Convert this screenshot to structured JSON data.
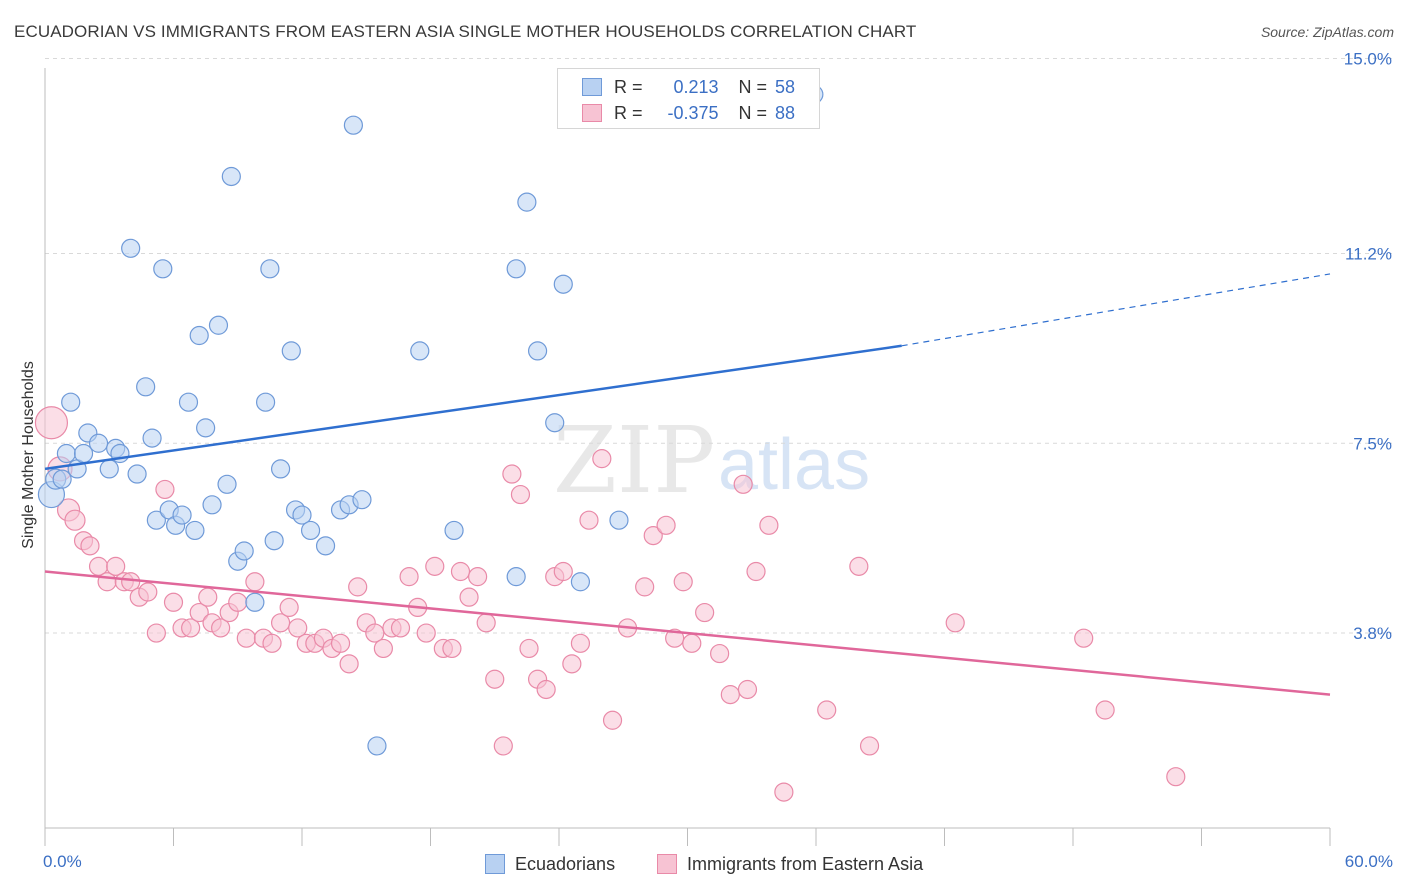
{
  "title": "ECUADORIAN VS IMMIGRANTS FROM EASTERN ASIA SINGLE MOTHER HOUSEHOLDS CORRELATION CHART",
  "source": "Source: ZipAtlas.com",
  "watermark": {
    "zip": "ZIP",
    "atlas": "atlas"
  },
  "legend_stats": [
    {
      "r_label": "R =",
      "r_value": "0.213",
      "n_label": "N =",
      "n_value": "58"
    },
    {
      "r_label": "R =",
      "r_value": "-0.375",
      "n_label": "N =",
      "n_value": "88"
    }
  ],
  "bottom_legend": [
    "Ecuadorians",
    "Immigrants from Eastern Asia"
  ],
  "colors": {
    "blue_fill": "#b8d1f2",
    "blue_stroke": "#6f9ad8",
    "blue_line": "#2f6fcf",
    "pink_fill": "#f7c3d3",
    "pink_stroke": "#e98aa8",
    "pink_line": "#e0679a",
    "tick_text": "#3b6fc4",
    "grid": "#d9d9d9"
  },
  "chart_data": {
    "type": "scatter",
    "title": "ECUADORIAN VS IMMIGRANTS FROM EASTERN ASIA SINGLE MOTHER HOUSEHOLDS CORRELATION CHART",
    "xlabel": "",
    "ylabel": "Single Mother Households",
    "xlim": [
      0,
      60
    ],
    "ylim": [
      0,
      15.6
    ],
    "x_tick_labels": [
      "0.0%",
      "60.0%"
    ],
    "y_ticks": [
      3.8,
      7.5,
      11.2,
      15.0
    ],
    "y_tick_labels": [
      "3.8%",
      "7.5%",
      "11.2%",
      "15.0%"
    ],
    "grid": "horizontal dashed",
    "legend_position": "top-center",
    "series": [
      {
        "name": "Ecuadorians",
        "r": 0.213,
        "n": 58,
        "trend": {
          "x0": 0.0,
          "y0": 7.0,
          "x1": 40.0,
          "y1": 9.4,
          "dashed_to_x": 60.0,
          "dashed_to_y": 10.8
        },
        "points": [
          [
            0.3,
            6.5,
            13
          ],
          [
            0.5,
            6.8,
            10
          ],
          [
            0.8,
            6.8,
            9
          ],
          [
            1.0,
            7.3,
            9
          ],
          [
            1.2,
            8.3,
            9
          ],
          [
            1.5,
            7.0,
            9
          ],
          [
            1.8,
            7.3,
            9
          ],
          [
            2.0,
            7.7,
            9
          ],
          [
            2.5,
            7.5,
            9
          ],
          [
            3.0,
            7.0,
            9
          ],
          [
            3.3,
            7.4,
            9
          ],
          [
            3.5,
            7.3,
            9
          ],
          [
            4.0,
            11.3,
            9
          ],
          [
            4.3,
            6.9,
            9
          ],
          [
            4.7,
            8.6,
            9
          ],
          [
            5.0,
            7.6,
            9
          ],
          [
            5.2,
            6.0,
            9
          ],
          [
            5.5,
            10.9,
            9
          ],
          [
            5.8,
            6.2,
            9
          ],
          [
            6.1,
            5.9,
            9
          ],
          [
            6.4,
            6.1,
            9
          ],
          [
            6.7,
            8.3,
            9
          ],
          [
            7.0,
            5.8,
            9
          ],
          [
            7.2,
            9.6,
            9
          ],
          [
            7.5,
            7.8,
            9
          ],
          [
            7.8,
            6.3,
            9
          ],
          [
            8.1,
            9.8,
            9
          ],
          [
            8.5,
            6.7,
            9
          ],
          [
            8.7,
            12.7,
            9
          ],
          [
            9.0,
            5.2,
            9
          ],
          [
            9.3,
            5.4,
            9
          ],
          [
            9.8,
            4.4,
            9
          ],
          [
            10.3,
            8.3,
            9
          ],
          [
            10.5,
            10.9,
            9
          ],
          [
            10.7,
            5.6,
            9
          ],
          [
            11.0,
            7.0,
            9
          ],
          [
            11.5,
            9.3,
            9
          ],
          [
            11.7,
            6.2,
            9
          ],
          [
            12.0,
            6.1,
            9
          ],
          [
            12.4,
            5.8,
            9
          ],
          [
            13.1,
            5.5,
            9
          ],
          [
            13.8,
            6.2,
            9
          ],
          [
            14.2,
            6.3,
            9
          ],
          [
            14.4,
            13.7,
            9
          ],
          [
            14.8,
            6.4,
            9
          ],
          [
            15.5,
            1.6,
            9
          ],
          [
            17.5,
            9.3,
            9
          ],
          [
            19.1,
            5.8,
            9
          ],
          [
            22.0,
            4.9,
            9
          ],
          [
            22.0,
            10.9,
            9
          ],
          [
            22.5,
            12.2,
            9
          ],
          [
            23.0,
            9.3,
            9
          ],
          [
            23.8,
            7.9,
            9
          ],
          [
            24.2,
            10.6,
            9
          ],
          [
            25.0,
            4.8,
            9
          ],
          [
            26.8,
            6.0,
            9
          ],
          [
            35.9,
            14.3,
            9
          ]
        ]
      },
      {
        "name": "Immigrants from Eastern Asia",
        "r": -0.375,
        "n": 88,
        "trend": {
          "x0": 0.0,
          "y0": 5.0,
          "x1": 60.0,
          "y1": 2.6
        },
        "points": [
          [
            0.3,
            7.9,
            16
          ],
          [
            0.7,
            7.0,
            12
          ],
          [
            1.1,
            6.2,
            11
          ],
          [
            1.4,
            6.0,
            10
          ],
          [
            1.8,
            5.6,
            9
          ],
          [
            2.1,
            5.5,
            9
          ],
          [
            2.5,
            5.1,
            9
          ],
          [
            2.9,
            4.8,
            9
          ],
          [
            3.3,
            5.1,
            9
          ],
          [
            3.7,
            4.8,
            9
          ],
          [
            4.0,
            4.8,
            9
          ],
          [
            4.4,
            4.5,
            9
          ],
          [
            4.8,
            4.6,
            9
          ],
          [
            5.2,
            3.8,
            9
          ],
          [
            5.6,
            6.6,
            9
          ],
          [
            6.0,
            4.4,
            9
          ],
          [
            6.4,
            3.9,
            9
          ],
          [
            6.8,
            3.9,
            9
          ],
          [
            7.2,
            4.2,
            9
          ],
          [
            7.6,
            4.5,
            9
          ],
          [
            7.8,
            4.0,
            9
          ],
          [
            8.2,
            3.9,
            9
          ],
          [
            8.6,
            4.2,
            9
          ],
          [
            9.0,
            4.4,
            9
          ],
          [
            9.4,
            3.7,
            9
          ],
          [
            9.8,
            4.8,
            9
          ],
          [
            10.2,
            3.7,
            9
          ],
          [
            10.6,
            3.6,
            9
          ],
          [
            11.0,
            4.0,
            9
          ],
          [
            11.4,
            4.3,
            9
          ],
          [
            11.8,
            3.9,
            9
          ],
          [
            12.2,
            3.6,
            9
          ],
          [
            12.6,
            3.6,
            9
          ],
          [
            13.0,
            3.7,
            9
          ],
          [
            13.4,
            3.5,
            9
          ],
          [
            13.8,
            3.6,
            9
          ],
          [
            14.2,
            3.2,
            9
          ],
          [
            14.6,
            4.7,
            9
          ],
          [
            15.0,
            4.0,
            9
          ],
          [
            15.4,
            3.8,
            9
          ],
          [
            15.8,
            3.5,
            9
          ],
          [
            16.2,
            3.9,
            9
          ],
          [
            16.6,
            3.9,
            9
          ],
          [
            17.0,
            4.9,
            9
          ],
          [
            17.4,
            4.3,
            9
          ],
          [
            17.8,
            3.8,
            9
          ],
          [
            18.2,
            5.1,
            9
          ],
          [
            18.6,
            3.5,
            9
          ],
          [
            19.0,
            3.5,
            9
          ],
          [
            19.4,
            5.0,
            9
          ],
          [
            19.8,
            4.5,
            9
          ],
          [
            20.2,
            4.9,
            9
          ],
          [
            20.6,
            4.0,
            9
          ],
          [
            21.0,
            2.9,
            9
          ],
          [
            21.4,
            1.6,
            9
          ],
          [
            21.8,
            6.9,
            9
          ],
          [
            22.2,
            6.5,
            9
          ],
          [
            22.6,
            3.5,
            9
          ],
          [
            23.0,
            2.9,
            9
          ],
          [
            23.4,
            2.7,
            9
          ],
          [
            23.8,
            4.9,
            9
          ],
          [
            24.2,
            5.0,
            9
          ],
          [
            24.6,
            3.2,
            9
          ],
          [
            25.0,
            3.6,
            9
          ],
          [
            25.4,
            6.0,
            9
          ],
          [
            26.0,
            7.2,
            9
          ],
          [
            26.5,
            2.1,
            9
          ],
          [
            27.2,
            3.9,
            9
          ],
          [
            28.0,
            4.7,
            9
          ],
          [
            28.4,
            5.7,
            9
          ],
          [
            29.0,
            5.9,
            9
          ],
          [
            29.4,
            3.7,
            9
          ],
          [
            29.8,
            4.8,
            9
          ],
          [
            30.2,
            3.6,
            9
          ],
          [
            30.8,
            4.2,
            9
          ],
          [
            31.5,
            3.4,
            9
          ],
          [
            32.0,
            2.6,
            9
          ],
          [
            32.6,
            6.7,
            9
          ],
          [
            32.8,
            2.7,
            9
          ],
          [
            33.2,
            5.0,
            9
          ],
          [
            33.8,
            5.9,
            9
          ],
          [
            34.5,
            0.7,
            9
          ],
          [
            36.5,
            2.3,
            9
          ],
          [
            38.0,
            5.1,
            9
          ],
          [
            38.5,
            1.6,
            9
          ],
          [
            42.5,
            4.0,
            9
          ],
          [
            48.5,
            3.7,
            9
          ],
          [
            49.5,
            2.3,
            9
          ],
          [
            52.8,
            1.0,
            9
          ]
        ]
      }
    ]
  }
}
